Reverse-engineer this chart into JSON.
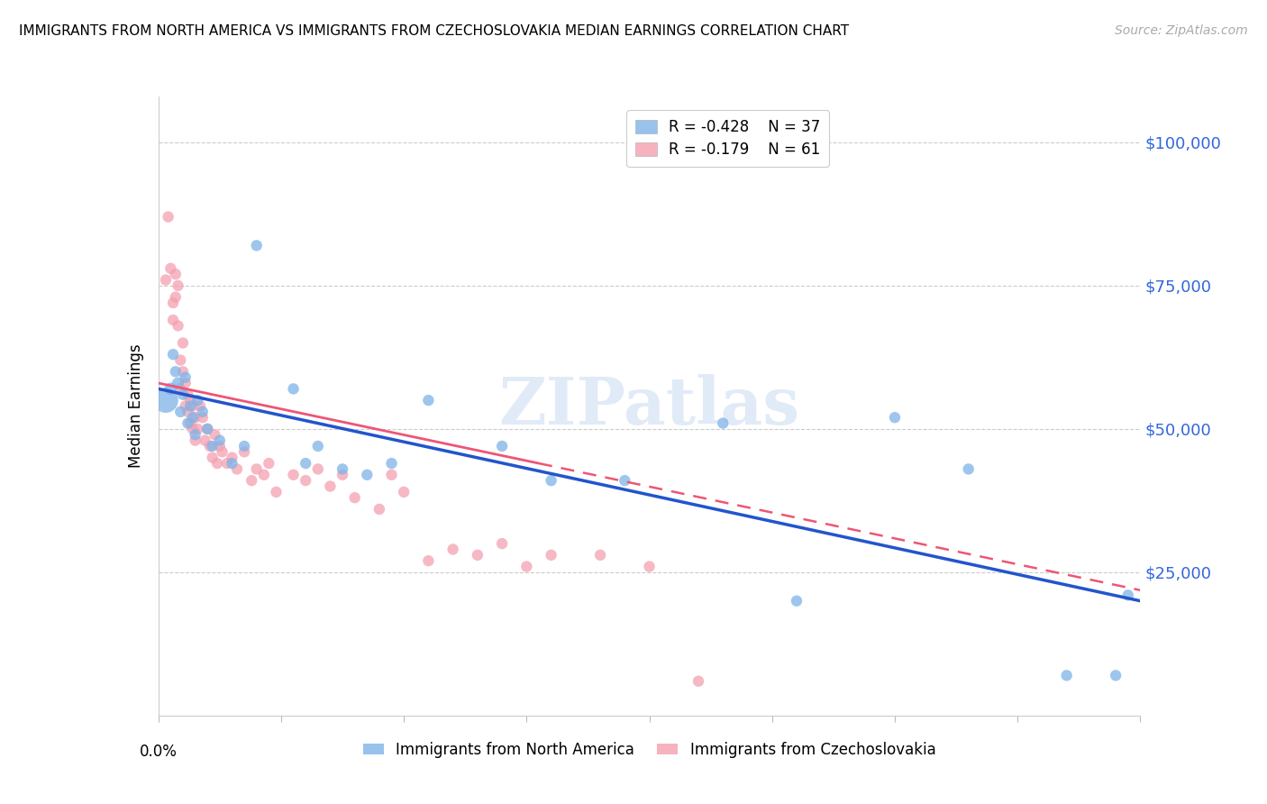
{
  "title": "IMMIGRANTS FROM NORTH AMERICA VS IMMIGRANTS FROM CZECHOSLOVAKIA MEDIAN EARNINGS CORRELATION CHART",
  "source": "Source: ZipAtlas.com",
  "ylabel": "Median Earnings",
  "ytick_values": [
    100000,
    75000,
    50000,
    25000
  ],
  "legend_blue_r": "R = -0.428",
  "legend_blue_n": "N = 37",
  "legend_pink_r": "R = -0.179",
  "legend_pink_n": "N = 61",
  "blue_color": "#7EB3E8",
  "pink_color": "#F4A0B0",
  "trend_blue_color": "#2255CC",
  "trend_pink_color": "#EE5577",
  "watermark_color": "#C5D8F0",
  "watermark": "ZIPatlas",
  "xlim": [
    0.0,
    0.4
  ],
  "ylim": [
    0,
    108000
  ],
  "blue_scatter_x": [
    0.003,
    0.005,
    0.006,
    0.007,
    0.008,
    0.009,
    0.01,
    0.011,
    0.012,
    0.013,
    0.014,
    0.015,
    0.016,
    0.018,
    0.02,
    0.022,
    0.025,
    0.03,
    0.035,
    0.04,
    0.055,
    0.06,
    0.065,
    0.075,
    0.085,
    0.095,
    0.11,
    0.14,
    0.16,
    0.19,
    0.23,
    0.26,
    0.3,
    0.33,
    0.37,
    0.39,
    0.395
  ],
  "blue_scatter_y": [
    55000,
    57000,
    63000,
    60000,
    58000,
    53000,
    56000,
    59000,
    51000,
    54000,
    52000,
    49000,
    55000,
    53000,
    50000,
    47000,
    48000,
    44000,
    47000,
    82000,
    57000,
    44000,
    47000,
    43000,
    42000,
    44000,
    55000,
    47000,
    41000,
    41000,
    51000,
    20000,
    52000,
    43000,
    7000,
    7000,
    21000
  ],
  "blue_scatter_size": [
    400,
    100,
    80,
    80,
    90,
    80,
    80,
    80,
    80,
    80,
    80,
    80,
    80,
    80,
    80,
    80,
    80,
    80,
    80,
    80,
    80,
    80,
    80,
    80,
    80,
    80,
    80,
    80,
    80,
    80,
    80,
    80,
    80,
    80,
    80,
    80,
    80
  ],
  "pink_scatter_x": [
    0.003,
    0.004,
    0.005,
    0.006,
    0.006,
    0.007,
    0.007,
    0.008,
    0.008,
    0.009,
    0.009,
    0.01,
    0.01,
    0.011,
    0.011,
    0.012,
    0.012,
    0.013,
    0.013,
    0.014,
    0.014,
    0.015,
    0.015,
    0.016,
    0.017,
    0.018,
    0.019,
    0.02,
    0.021,
    0.022,
    0.023,
    0.024,
    0.025,
    0.026,
    0.028,
    0.03,
    0.032,
    0.035,
    0.038,
    0.04,
    0.043,
    0.045,
    0.048,
    0.055,
    0.06,
    0.065,
    0.07,
    0.075,
    0.08,
    0.09,
    0.095,
    0.1,
    0.11,
    0.12,
    0.13,
    0.14,
    0.15,
    0.16,
    0.18,
    0.2,
    0.22
  ],
  "pink_scatter_y": [
    76000,
    87000,
    78000,
    72000,
    69000,
    77000,
    73000,
    75000,
    68000,
    57000,
    62000,
    65000,
    60000,
    58000,
    54000,
    56000,
    53000,
    51000,
    55000,
    54000,
    50000,
    52000,
    48000,
    50000,
    54000,
    52000,
    48000,
    50000,
    47000,
    45000,
    49000,
    44000,
    47000,
    46000,
    44000,
    45000,
    43000,
    46000,
    41000,
    43000,
    42000,
    44000,
    39000,
    42000,
    41000,
    43000,
    40000,
    42000,
    38000,
    36000,
    42000,
    39000,
    27000,
    29000,
    28000,
    30000,
    26000,
    28000,
    28000,
    26000,
    6000
  ],
  "pink_scatter_size": [
    80,
    80,
    80,
    80,
    80,
    80,
    80,
    80,
    80,
    80,
    80,
    80,
    80,
    80,
    80,
    80,
    80,
    80,
    80,
    80,
    80,
    80,
    80,
    80,
    80,
    80,
    80,
    80,
    80,
    80,
    80,
    80,
    80,
    80,
    80,
    80,
    80,
    80,
    80,
    80,
    80,
    80,
    80,
    80,
    80,
    80,
    80,
    80,
    80,
    80,
    80,
    80,
    80,
    80,
    80,
    80,
    80,
    80,
    80,
    80,
    80
  ]
}
